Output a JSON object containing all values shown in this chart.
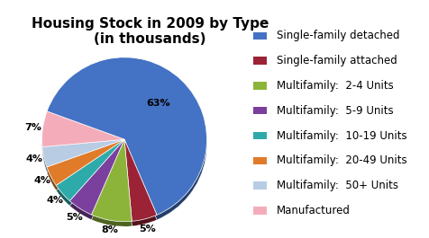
{
  "title": "Housing Stock in 2009 by Type\n(in thousands)",
  "labels": [
    "Single-family detached",
    "Single-family attached",
    "Multifamily:  2-4 Units",
    "Multifamily:  5-9 Units",
    "Multifamily:  10-19 Units",
    "Multifamily:  20-49 Units",
    "Multifamily:  50+ Units",
    "Manufactured"
  ],
  "values": [
    63,
    5,
    8,
    5,
    4,
    4,
    4,
    7
  ],
  "colors": [
    "#4472C4",
    "#9B2335",
    "#8DB43A",
    "#7B3F9E",
    "#2EAAAA",
    "#E07B2A",
    "#B8CCE4",
    "#F4ACBB"
  ],
  "startangle": 160,
  "title_fontsize": 11,
  "legend_fontsize": 8.5,
  "pct_fontsize": 8
}
